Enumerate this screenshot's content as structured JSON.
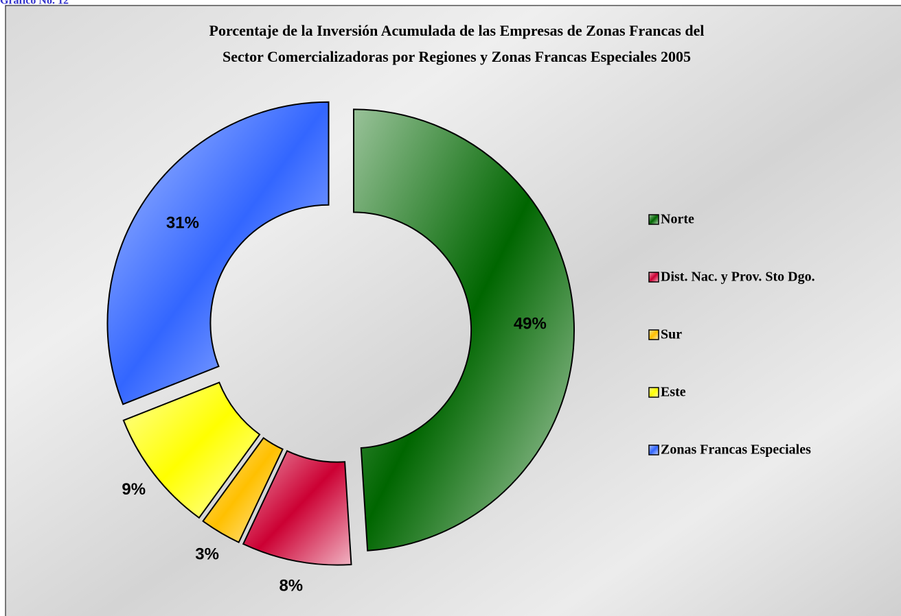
{
  "chart_data": {
    "type": "donut",
    "header": "Gráfico No. 12",
    "title": [
      "Porcentaje de la Inversión Acumulada de las Empresas de Zonas Francas del",
      "Sector Comercializadoras por Regiones y Zonas Francas Especiales  2005"
    ],
    "categories": [
      "Norte",
      "Dist. Nac. y Prov. Sto Dgo.",
      "Sur",
      "Este",
      "Zonas Francas Especiales"
    ],
    "values": [
      49,
      8,
      3,
      9,
      31
    ],
    "value_labels": [
      "49%",
      "8%",
      "3%",
      "9%",
      "31%"
    ],
    "colors": [
      "#006600",
      "#cc0033",
      "#ffc000",
      "#ffff00",
      "#3366ff"
    ],
    "legend": "right"
  }
}
